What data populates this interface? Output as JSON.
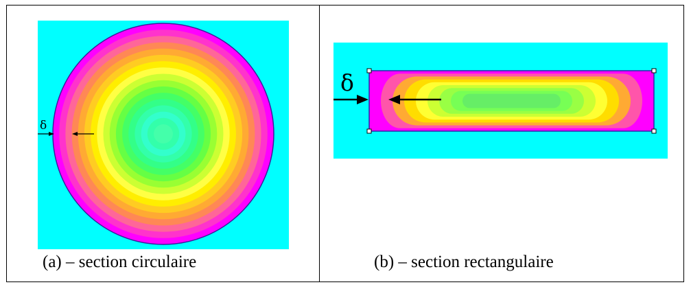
{
  "panels": [
    {
      "id": "a",
      "caption": "(a) – section circulaire",
      "thickness_symbol": "δ",
      "shape": "circle",
      "colors": {
        "background": "#00ffff",
        "outline": "#3a1f9e",
        "contour_bands": [
          "#ff00ff",
          "#ff33cc",
          "#ff6699",
          "#ff8855",
          "#ffaa33",
          "#ffcc22",
          "#ffee00",
          "#ffff44",
          "#ccff33",
          "#99ff33",
          "#66ff44",
          "#44ff66",
          "#33ff88",
          "#33ffaa",
          "#33ffcc",
          "#33ffaa"
        ]
      }
    },
    {
      "id": "b",
      "caption": "(b) – section rectangulaire",
      "thickness_symbol": "δ",
      "shape": "rectangle",
      "colors": {
        "background": "#00ffff",
        "outline": "#2a2aa8",
        "contour_bands": [
          "#ff00ff",
          "#ff55aa",
          "#ffaa33",
          "#ffdd00",
          "#ffff33",
          "#ccff33",
          "#99ff44",
          "#77ff55",
          "#66ee66"
        ]
      }
    }
  ]
}
